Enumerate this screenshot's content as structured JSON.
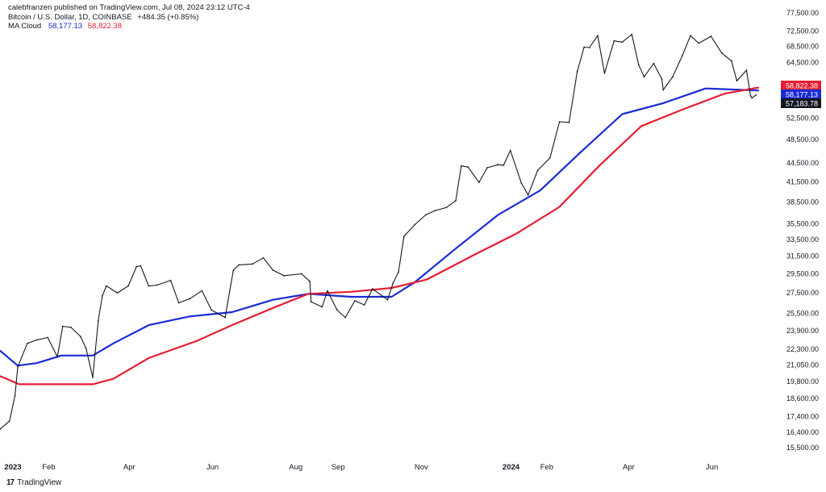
{
  "header": {
    "publisher_line": "calebfranzen published on TradingView.com, Jul 08, 2024 23:12 UTC-4",
    "symbol_line": "Bitcoin / U.S. Dollar, 1D, COINBASE",
    "change": "+484.35 (+0.85%)",
    "ma_label": "MA Cloud",
    "ma_blue_value": "58,177.13",
    "ma_red_value": "58,822.38"
  },
  "footer": {
    "logo_glyph": "17",
    "brand": "TradingView"
  },
  "colors": {
    "ma_blue": "#1a2bd6",
    "ma_red": "#e61e31",
    "price": "#131722",
    "background": "#ffffff"
  },
  "chart_data": {
    "type": "line",
    "title": "Bitcoin / U.S. Dollar, 1D, COINBASE",
    "yscale": "log",
    "ylim": [
      15000,
      78000
    ],
    "xlim": [
      "2023-01-01",
      "2024-07-12"
    ],
    "y_ticks": [
      "77,500.00",
      "72,500.00",
      "68,500.00",
      "64,500.00",
      "58,500.00",
      "52,500.00",
      "48,500.00",
      "44,500.00",
      "41,500.00",
      "38,500.00",
      "35,500.00",
      "33,500.00",
      "31,500.00",
      "29,500.00",
      "27,500.00",
      "25,500.00",
      "23,900.00",
      "22,300.00",
      "21,050.00",
      "19,800.00",
      "18,600.00",
      "17,400.00",
      "16,400.00",
      "15,500.00"
    ],
    "x_ticks": [
      {
        "label": "2023",
        "date": "2023-01-01",
        "bold": true
      },
      {
        "label": "Feb",
        "date": "2023-02-01"
      },
      {
        "label": "Apr",
        "date": "2023-04-01"
      },
      {
        "label": "Jun",
        "date": "2023-06-01"
      },
      {
        "label": "Aug",
        "date": "2023-08-01"
      },
      {
        "label": "Sep",
        "date": "2023-09-01"
      },
      {
        "label": "Nov",
        "date": "2023-11-01"
      },
      {
        "label": "2024",
        "date": "2024-01-01",
        "bold": true
      },
      {
        "label": "Feb",
        "date": "2024-02-01"
      },
      {
        "label": "Apr",
        "date": "2024-04-01"
      },
      {
        "label": "Jun",
        "date": "2024-06-01"
      }
    ],
    "price_labels": [
      {
        "text": "58,822.38",
        "color": "#e61e31"
      },
      {
        "text": "58,177.13",
        "color": "#1a2bd6"
      },
      {
        "text": "57,183.78",
        "color": "#131722"
      }
    ],
    "series": [
      {
        "name": "BTCUSD",
        "color": "#131722",
        "points": [
          [
            "2023-01-01",
            16600
          ],
          [
            "2023-01-08",
            17100
          ],
          [
            "2023-01-12",
            18800
          ],
          [
            "2023-01-14",
            20900
          ],
          [
            "2023-01-21",
            22800
          ],
          [
            "2023-01-28",
            23100
          ],
          [
            "2023-02-05",
            23300
          ],
          [
            "2023-02-12",
            21700
          ],
          [
            "2023-02-16",
            24300
          ],
          [
            "2023-02-22",
            24200
          ],
          [
            "2023-03-01",
            23400
          ],
          [
            "2023-03-05",
            22400
          ],
          [
            "2023-03-10",
            20100
          ],
          [
            "2023-03-14",
            24800
          ],
          [
            "2023-03-17",
            27200
          ],
          [
            "2023-03-20",
            28200
          ],
          [
            "2023-03-28",
            27500
          ],
          [
            "2023-04-05",
            28200
          ],
          [
            "2023-04-11",
            30300
          ],
          [
            "2023-04-14",
            30400
          ],
          [
            "2023-04-20",
            28200
          ],
          [
            "2023-04-26",
            28300
          ],
          [
            "2023-05-06",
            28800
          ],
          [
            "2023-05-12",
            26500
          ],
          [
            "2023-05-20",
            26900
          ],
          [
            "2023-05-29",
            27700
          ],
          [
            "2023-06-05",
            25800
          ],
          [
            "2023-06-15",
            25100
          ],
          [
            "2023-06-21",
            29900
          ],
          [
            "2023-06-25",
            30500
          ],
          [
            "2023-07-05",
            30600
          ],
          [
            "2023-07-13",
            31300
          ],
          [
            "2023-07-20",
            29900
          ],
          [
            "2023-07-28",
            29300
          ],
          [
            "2023-08-10",
            29500
          ],
          [
            "2023-08-16",
            28700
          ],
          [
            "2023-08-17",
            26600
          ],
          [
            "2023-08-25",
            26100
          ],
          [
            "2023-08-29",
            27700
          ],
          [
            "2023-09-05",
            25800
          ],
          [
            "2023-09-11",
            25100
          ],
          [
            "2023-09-18",
            26700
          ],
          [
            "2023-09-25",
            26300
          ],
          [
            "2023-10-01",
            27900
          ],
          [
            "2023-10-12",
            26800
          ],
          [
            "2023-10-16",
            28500
          ],
          [
            "2023-10-20",
            29700
          ],
          [
            "2023-10-24",
            33900
          ],
          [
            "2023-11-01",
            35400
          ],
          [
            "2023-11-09",
            36700
          ],
          [
            "2023-11-16",
            37300
          ],
          [
            "2023-11-24",
            37700
          ],
          [
            "2023-12-01",
            38700
          ],
          [
            "2023-12-05",
            44000
          ],
          [
            "2023-12-10",
            43800
          ],
          [
            "2023-12-18",
            41400
          ],
          [
            "2023-12-24",
            43700
          ],
          [
            "2024-01-01",
            44200
          ],
          [
            "2024-01-05",
            44100
          ],
          [
            "2024-01-10",
            46600
          ],
          [
            "2024-01-18",
            41300
          ],
          [
            "2024-01-23",
            39500
          ],
          [
            "2024-01-30",
            43300
          ],
          [
            "2024-02-08",
            45300
          ],
          [
            "2024-02-15",
            51800
          ],
          [
            "2024-02-22",
            51700
          ],
          [
            "2024-02-28",
            62400
          ],
          [
            "2024-03-04",
            68300
          ],
          [
            "2024-03-08",
            68200
          ],
          [
            "2024-03-14",
            71300
          ],
          [
            "2024-03-19",
            62000
          ],
          [
            "2024-03-26",
            69900
          ],
          [
            "2024-04-01",
            69600
          ],
          [
            "2024-04-08",
            71600
          ],
          [
            "2024-04-13",
            64000
          ],
          [
            "2024-04-17",
            61200
          ],
          [
            "2024-04-24",
            64300
          ],
          [
            "2024-04-30",
            60700
          ],
          [
            "2024-05-01",
            58300
          ],
          [
            "2024-05-08",
            61200
          ],
          [
            "2024-05-15",
            66200
          ],
          [
            "2024-05-21",
            71300
          ],
          [
            "2024-05-27",
            69300
          ],
          [
            "2024-06-05",
            71100
          ],
          [
            "2024-06-13",
            66800
          ],
          [
            "2024-06-20",
            64900
          ],
          [
            "2024-06-24",
            60300
          ],
          [
            "2024-07-01",
            62700
          ],
          [
            "2024-07-04",
            57000
          ],
          [
            "2024-07-05",
            56600
          ],
          [
            "2024-07-08",
            57183.78
          ]
        ]
      },
      {
        "name": "MA Cloud (blue)",
        "color": "#1a2bd6",
        "points": [
          [
            "2023-01-01",
            22200
          ],
          [
            "2023-01-14",
            21000
          ],
          [
            "2023-01-28",
            21200
          ],
          [
            "2023-02-15",
            21800
          ],
          [
            "2023-03-10",
            21800
          ],
          [
            "2023-03-25",
            22800
          ],
          [
            "2023-04-20",
            24400
          ],
          [
            "2023-05-20",
            25200
          ],
          [
            "2023-06-20",
            25600
          ],
          [
            "2023-07-20",
            26800
          ],
          [
            "2023-08-15",
            27400
          ],
          [
            "2023-09-15",
            27100
          ],
          [
            "2023-10-15",
            27100
          ],
          [
            "2023-11-01",
            28600
          ],
          [
            "2023-12-01",
            32400
          ],
          [
            "2024-01-01",
            36700
          ],
          [
            "2024-02-01",
            40200
          ],
          [
            "2024-03-01",
            46200
          ],
          [
            "2024-04-01",
            53300
          ],
          [
            "2024-05-01",
            55500
          ],
          [
            "2024-06-01",
            58600
          ],
          [
            "2024-07-10",
            58177.13
          ]
        ]
      },
      {
        "name": "MA Cloud (red)",
        "color": "#e61e31",
        "points": [
          [
            "2023-01-01",
            20200
          ],
          [
            "2023-01-15",
            19600
          ],
          [
            "2023-02-15",
            19600
          ],
          [
            "2023-03-10",
            19600
          ],
          [
            "2023-03-25",
            20000
          ],
          [
            "2023-04-20",
            21600
          ],
          [
            "2023-05-25",
            23000
          ],
          [
            "2023-06-20",
            24400
          ],
          [
            "2023-07-20",
            26000
          ],
          [
            "2023-08-15",
            27400
          ],
          [
            "2023-09-15",
            27600
          ],
          [
            "2023-10-15",
            28000
          ],
          [
            "2023-11-10",
            28900
          ],
          [
            "2023-12-15",
            31700
          ],
          [
            "2024-01-15",
            34300
          ],
          [
            "2024-02-15",
            37800
          ],
          [
            "2024-03-15",
            44000
          ],
          [
            "2024-04-15",
            51000
          ],
          [
            "2024-05-15",
            54200
          ],
          [
            "2024-06-15",
            57500
          ],
          [
            "2024-07-10",
            58822.38
          ]
        ]
      }
    ]
  }
}
